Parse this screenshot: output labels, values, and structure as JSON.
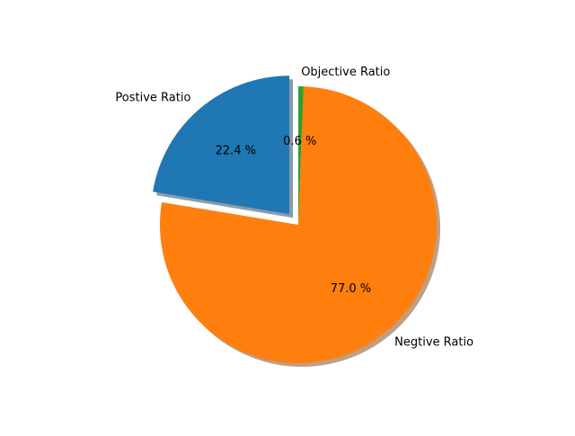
{
  "chart_data": {
    "type": "pie",
    "title": "",
    "slices": [
      {
        "label": "Postive Ratio",
        "value": 22.4,
        "pct_label": "22.4 %",
        "color": "#1f77b4",
        "explode": 0.1
      },
      {
        "label": "Negtive Ratio",
        "value": 77.0,
        "pct_label": "77.0 %",
        "color": "#ff7f0e",
        "explode": 0.0
      },
      {
        "label": "Objective Ratio",
        "value": 0.6,
        "pct_label": "0.6 %",
        "color": "#2ca02c",
        "explode": 0.0
      }
    ],
    "start_angle_deg": 90,
    "direction": "counterclockwise",
    "shadow": true,
    "legend": "none"
  }
}
